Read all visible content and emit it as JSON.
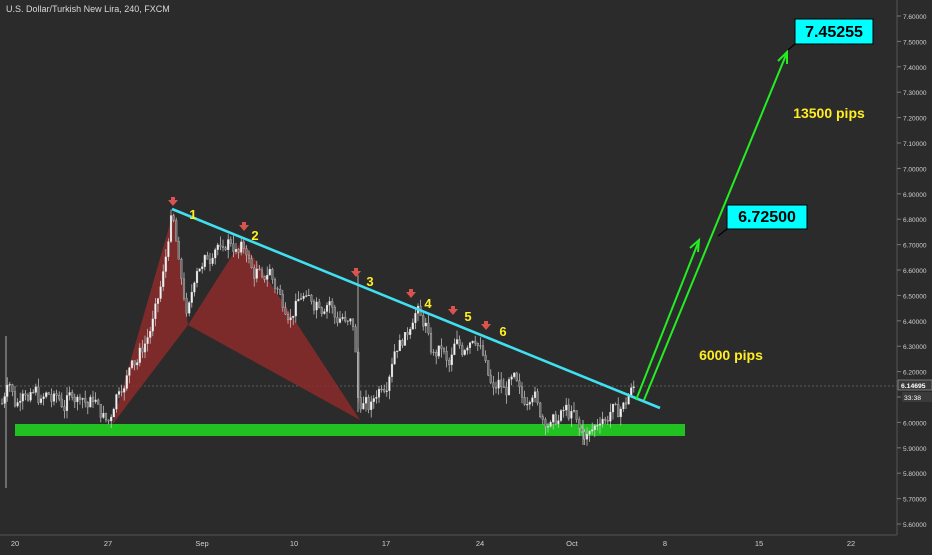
{
  "header": {
    "title": "U.S. Dollar/Turkish New Lira, 240, FXCM"
  },
  "price_axis": {
    "labels": [
      "7.60000",
      "7.50000",
      "7.40000",
      "7.30000",
      "7.20000",
      "7.10000",
      "7.00000",
      "6.90000",
      "6.80000",
      "6.70000",
      "6.60000",
      "6.50000",
      "6.40000",
      "6.30000",
      "6.20000",
      "6.10000",
      "6.00000",
      "5.90000",
      "5.80000",
      "5.70000",
      "5.60000"
    ],
    "current_price": "6.14695",
    "countdown": "33:38"
  },
  "time_axis": {
    "labels": [
      "20",
      "27",
      "Sep",
      "10",
      "17",
      "24",
      "Oct",
      "8",
      "15",
      "22"
    ]
  },
  "annotations": {
    "points": [
      "1",
      "2",
      "3",
      "4",
      "5",
      "6"
    ],
    "target_low": "6.72500",
    "target_high": "7.45255",
    "pips_low": "6000 pips",
    "pips_high": "13500 pips"
  },
  "colors": {
    "background": "#2b2b2b",
    "candle": "#e6e6e6",
    "trendline": "#40e0f0",
    "support": "#22c122",
    "pattern": "#8b2a2a",
    "arrow": "#d9534f",
    "label_yellow": "#ffee22",
    "projection": "#22ee22",
    "target_box": "#00ffff"
  },
  "chart_data": {
    "type": "candlestick",
    "title": "U.S. Dollar/Turkish New Lira, 240, FXCM",
    "ylim": [
      5.58,
      7.64
    ],
    "y_ticks": [
      7.6,
      7.5,
      7.4,
      7.3,
      7.2,
      7.1,
      7.0,
      6.9,
      6.8,
      6.7,
      6.6,
      6.5,
      6.4,
      6.3,
      6.2,
      6.1,
      6.0,
      5.9,
      5.8,
      5.7,
      5.6
    ],
    "x_ticks": [
      "20",
      "27",
      "Sep",
      "10",
      "17",
      "24",
      "Oct",
      "8",
      "15",
      "22"
    ],
    "close_path": [
      [
        0,
        6.05
      ],
      [
        4,
        6.1
      ],
      [
        8,
        6.18
      ],
      [
        12,
        6.12
      ],
      [
        16,
        6.06
      ],
      [
        20,
        6.1
      ],
      [
        24,
        6.14
      ],
      [
        28,
        6.08
      ],
      [
        32,
        6.11
      ],
      [
        36,
        6.13
      ],
      [
        40,
        6.07
      ],
      [
        44,
        6.1
      ],
      [
        48,
        6.12
      ],
      [
        52,
        6.08
      ],
      [
        56,
        6.11
      ],
      [
        60,
        6.09
      ],
      [
        64,
        6.05
      ],
      [
        68,
        6.1
      ],
      [
        72,
        6.12
      ],
      [
        76,
        6.08
      ],
      [
        80,
        6.11
      ],
      [
        84,
        6.09
      ],
      [
        88,
        6.06
      ],
      [
        92,
        6.1
      ],
      [
        96,
        6.08
      ],
      [
        100,
        6.04
      ],
      [
        104,
        6.02
      ],
      [
        108,
        6.0
      ],
      [
        112,
        6.04
      ],
      [
        116,
        6.1
      ],
      [
        120,
        6.15
      ],
      [
        124,
        6.12
      ],
      [
        128,
        6.2
      ],
      [
        132,
        6.26
      ],
      [
        136,
        6.22
      ],
      [
        140,
        6.28
      ],
      [
        144,
        6.3
      ],
      [
        148,
        6.34
      ],
      [
        152,
        6.38
      ],
      [
        156,
        6.46
      ],
      [
        160,
        6.52
      ],
      [
        164,
        6.6
      ],
      [
        168,
        6.72
      ],
      [
        172,
        6.82
      ],
      [
        175,
        6.76
      ],
      [
        178,
        6.64
      ],
      [
        181,
        6.58
      ],
      [
        184,
        6.5
      ],
      [
        187,
        6.4
      ],
      [
        190,
        6.48
      ],
      [
        194,
        6.56
      ],
      [
        198,
        6.62
      ],
      [
        202,
        6.6
      ],
      [
        206,
        6.66
      ],
      [
        210,
        6.64
      ],
      [
        214,
        6.68
      ],
      [
        218,
        6.7
      ],
      [
        222,
        6.66
      ],
      [
        226,
        6.7
      ],
      [
        230,
        6.72
      ],
      [
        234,
        6.68
      ],
      [
        238,
        6.66
      ],
      [
        242,
        6.7
      ],
      [
        246,
        6.68
      ],
      [
        250,
        6.62
      ],
      [
        254,
        6.58
      ],
      [
        258,
        6.6
      ],
      [
        262,
        6.56
      ],
      [
        266,
        6.58
      ],
      [
        270,
        6.6
      ],
      [
        274,
        6.54
      ],
      [
        278,
        6.52
      ],
      [
        282,
        6.48
      ],
      [
        286,
        6.44
      ],
      [
        290,
        6.4
      ],
      [
        294,
        6.44
      ],
      [
        298,
        6.48
      ],
      [
        302,
        6.5
      ],
      [
        306,
        6.48
      ],
      [
        310,
        6.5
      ],
      [
        314,
        6.46
      ],
      [
        318,
        6.48
      ],
      [
        322,
        6.44
      ],
      [
        326,
        6.46
      ],
      [
        330,
        6.48
      ],
      [
        334,
        6.42
      ],
      [
        338,
        6.4
      ],
      [
        342,
        6.42
      ],
      [
        346,
        6.38
      ],
      [
        350,
        6.4
      ],
      [
        354,
        6.38
      ],
      [
        358,
        6.1
      ],
      [
        362,
        6.06
      ],
      [
        366,
        6.08
      ],
      [
        370,
        6.05
      ],
      [
        374,
        6.1
      ],
      [
        378,
        6.12
      ],
      [
        382,
        6.15
      ],
      [
        386,
        6.13
      ],
      [
        390,
        6.2
      ],
      [
        394,
        6.28
      ],
      [
        398,
        6.3
      ],
      [
        402,
        6.32
      ],
      [
        406,
        6.34
      ],
      [
        410,
        6.38
      ],
      [
        414,
        6.42
      ],
      [
        418,
        6.44
      ],
      [
        422,
        6.4
      ],
      [
        426,
        6.38
      ],
      [
        430,
        6.3
      ],
      [
        434,
        6.26
      ],
      [
        438,
        6.28
      ],
      [
        442,
        6.3
      ],
      [
        446,
        6.24
      ],
      [
        450,
        6.22
      ],
      [
        454,
        6.3
      ],
      [
        458,
        6.32
      ],
      [
        462,
        6.28
      ],
      [
        466,
        6.3
      ],
      [
        470,
        6.32
      ],
      [
        474,
        6.34
      ],
      [
        478,
        6.3
      ],
      [
        482,
        6.28
      ],
      [
        486,
        6.22
      ],
      [
        490,
        6.16
      ],
      [
        494,
        6.12
      ],
      [
        498,
        6.16
      ],
      [
        502,
        6.14
      ],
      [
        506,
        6.12
      ],
      [
        510,
        6.16
      ],
      [
        514,
        6.18
      ],
      [
        518,
        6.14
      ],
      [
        522,
        6.1
      ],
      [
        526,
        6.08
      ],
      [
        530,
        6.1
      ],
      [
        534,
        6.12
      ],
      [
        538,
        6.06
      ],
      [
        542,
        6.02
      ],
      [
        546,
        6.0
      ],
      [
        550,
        5.98
      ],
      [
        554,
        6.02
      ],
      [
        558,
        6.0
      ],
      [
        562,
        6.04
      ],
      [
        566,
        6.06
      ],
      [
        570,
        6.02
      ],
      [
        574,
        6.04
      ],
      [
        578,
        5.98
      ],
      [
        582,
        5.96
      ],
      [
        586,
        5.94
      ],
      [
        590,
        5.96
      ],
      [
        594,
        5.98
      ],
      [
        598,
        6.0
      ],
      [
        602,
        6.02
      ],
      [
        606,
        6.0
      ],
      [
        610,
        6.04
      ],
      [
        614,
        6.06
      ],
      [
        618,
        6.04
      ],
      [
        622,
        6.06
      ],
      [
        626,
        6.08
      ],
      [
        630,
        6.12
      ],
      [
        634,
        6.14
      ],
      [
        637,
        6.15
      ]
    ]
  }
}
